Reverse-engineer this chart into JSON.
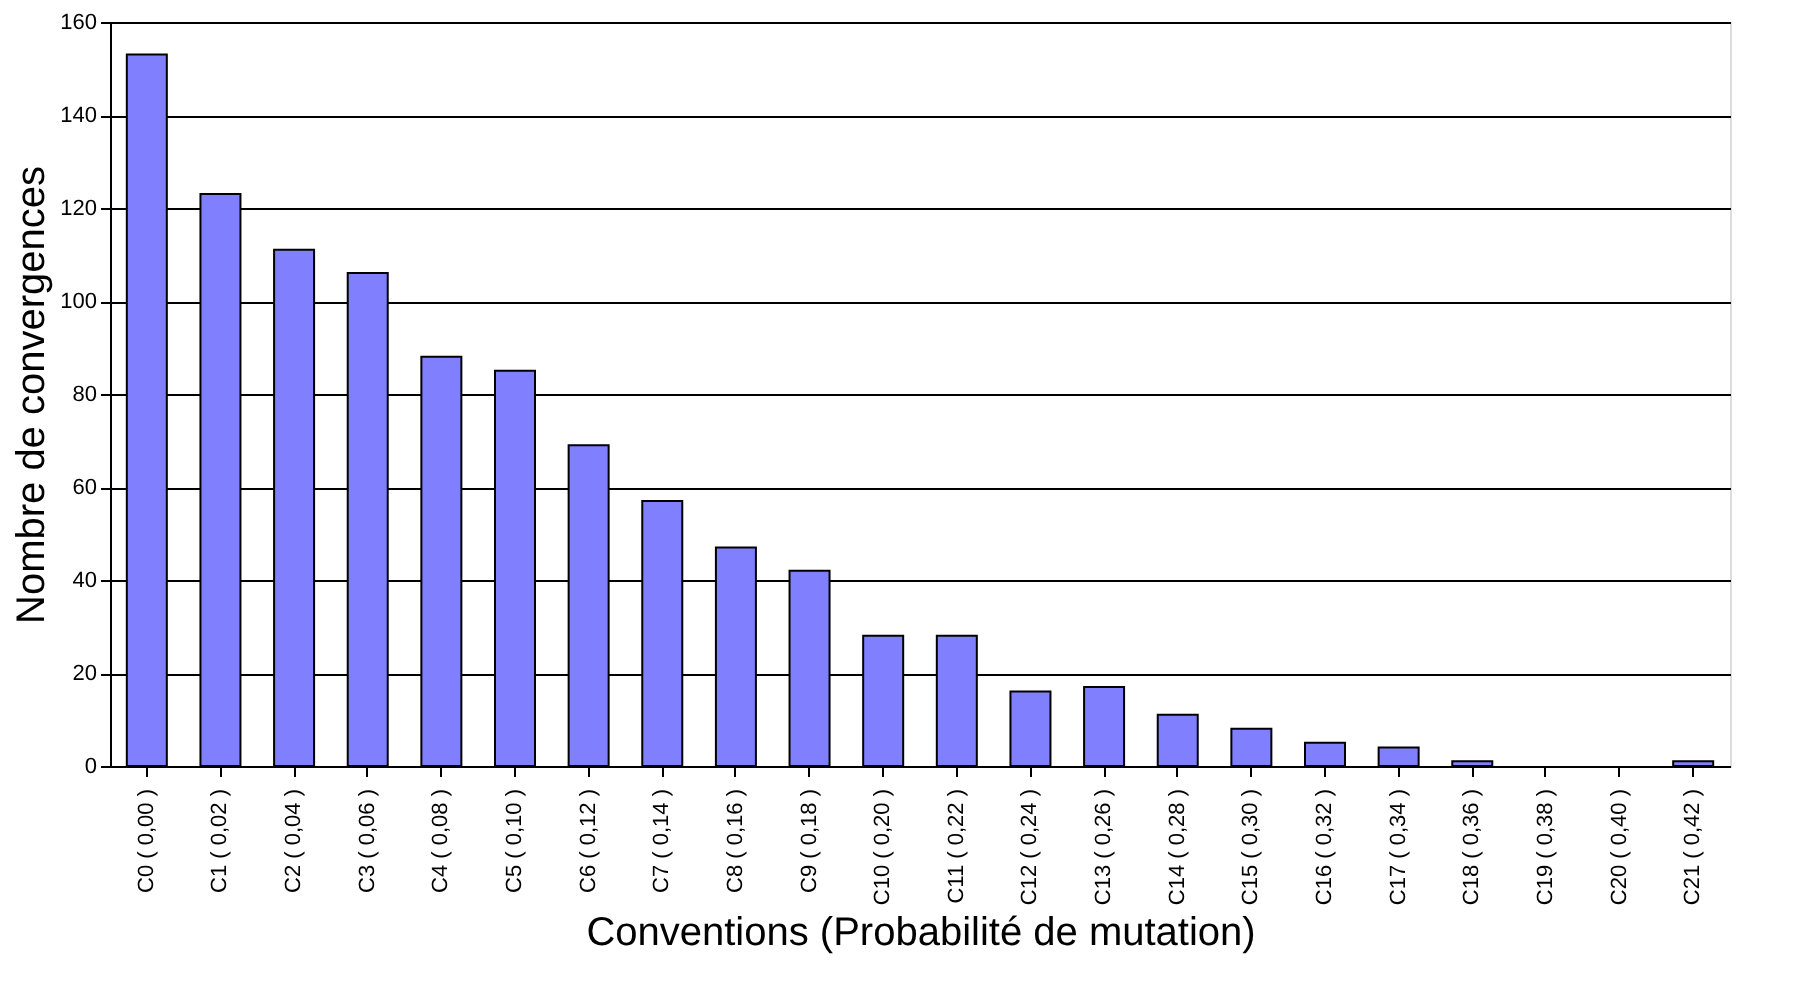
{
  "chart_data": {
    "type": "bar",
    "xlabel": "Conventions (Probabilité de mutation)",
    "ylabel": "Nombre de convergences",
    "categories": [
      "C0 ( 0,00 )",
      "C1 ( 0,02 )",
      "C2 ( 0,04 )",
      "C3 ( 0,06 )",
      "C4 ( 0,08 )",
      "C5 ( 0,10 )",
      "C6 ( 0,12 )",
      "C7 ( 0,14 )",
      "C8 ( 0,16 )",
      "C9 ( 0,18 )",
      "C10 ( 0,20 )",
      "C11 ( 0,22 )",
      "C12 ( 0,24 )",
      "C13 ( 0,26 )",
      "C14 ( 0,28 )",
      "C15 ( 0,30 )",
      "C16 ( 0,32 )",
      "C17 ( 0,34 )",
      "C18 ( 0,36 )",
      "C19 ( 0,38 )",
      "C20 ( 0,40 )",
      "C21 ( 0,42 )"
    ],
    "values": [
      153,
      123,
      111,
      106,
      88,
      85,
      69,
      57,
      47,
      42,
      28,
      28,
      16,
      17,
      11,
      8,
      5,
      4,
      1,
      0,
      0,
      1
    ],
    "color": "#8080ff",
    "ylim": [
      0,
      160
    ],
    "yticks": [
      0,
      20,
      40,
      60,
      80,
      100,
      120,
      140,
      160
    ],
    "grid": "y"
  }
}
